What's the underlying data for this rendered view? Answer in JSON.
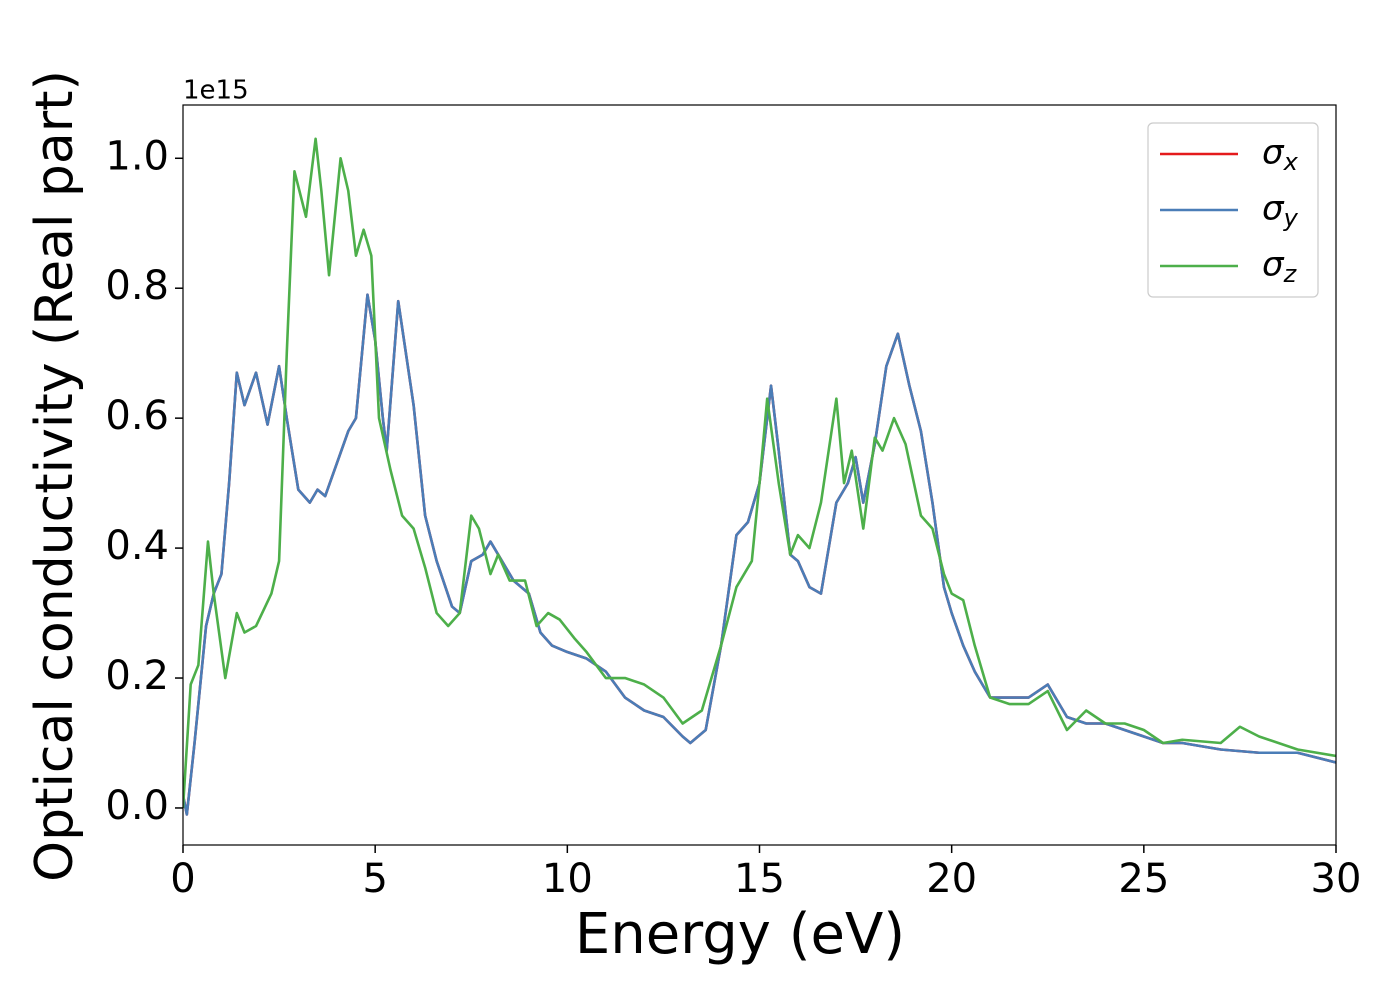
{
  "chart_data": {
    "type": "line",
    "xlabel": "Energy (eV)",
    "ylabel": "Optical conductivity (Real part)",
    "y_offset_label": "1e15",
    "xlim": [
      0,
      30
    ],
    "xticks": [
      0,
      5,
      10,
      15,
      20,
      25,
      30
    ],
    "ylim": [
      -0.057,
      1.082
    ],
    "yticks": [
      {
        "value": 0,
        "label": "0.0"
      },
      {
        "value": 0.2,
        "label": "0.2"
      },
      {
        "value": 0.4,
        "label": "0.4"
      },
      {
        "value": 0.6,
        "label": "0.6"
      },
      {
        "value": 0.8,
        "label": "0.8"
      },
      {
        "value": 1.0,
        "label": "1.0"
      }
    ],
    "legend": "upper right",
    "series": [
      {
        "name": "σx",
        "color": "#e41a1c",
        "x": [
          0,
          0.1,
          0.3,
          0.6,
          0.8,
          1.0,
          1.2,
          1.4,
          1.6,
          1.9,
          2.2,
          2.5,
          2.7,
          3.0,
          3.3,
          3.5,
          3.7,
          4.0,
          4.3,
          4.5,
          4.8,
          5.0,
          5.2,
          5.3,
          5.6,
          5.8,
          6.0,
          6.3,
          6.6,
          7.0,
          7.2,
          7.5,
          7.8,
          8.0,
          8.3,
          8.6,
          9.0,
          9.3,
          9.6,
          10.0,
          10.5,
          11.0,
          11.5,
          12.0,
          12.5,
          13.0,
          13.2,
          13.6,
          14.0,
          14.4,
          14.7,
          15.0,
          15.3,
          15.5,
          15.8,
          16.0,
          16.3,
          16.6,
          17.0,
          17.3,
          17.5,
          17.7,
          18.0,
          18.3,
          18.6,
          18.9,
          19.2,
          19.5,
          19.8,
          20.0,
          20.3,
          20.6,
          21.0,
          21.5,
          22.0,
          22.5,
          23.0,
          23.5,
          24.0,
          24.5,
          25.0,
          25.5,
          26,
          27,
          28,
          29,
          30
        ],
        "values": [
          0.02,
          -0.01,
          0.1,
          0.28,
          0.33,
          0.36,
          0.5,
          0.67,
          0.62,
          0.67,
          0.59,
          0.68,
          0.6,
          0.49,
          0.47,
          0.49,
          0.48,
          0.53,
          0.58,
          0.6,
          0.79,
          0.72,
          0.6,
          0.55,
          0.78,
          0.7,
          0.62,
          0.45,
          0.38,
          0.31,
          0.3,
          0.38,
          0.39,
          0.41,
          0.38,
          0.35,
          0.33,
          0.27,
          0.25,
          0.24,
          0.23,
          0.21,
          0.17,
          0.15,
          0.14,
          0.11,
          0.1,
          0.12,
          0.25,
          0.42,
          0.44,
          0.5,
          0.65,
          0.55,
          0.39,
          0.38,
          0.34,
          0.33,
          0.47,
          0.5,
          0.54,
          0.47,
          0.56,
          0.68,
          0.73,
          0.65,
          0.58,
          0.47,
          0.34,
          0.3,
          0.25,
          0.21,
          0.17,
          0.17,
          0.17,
          0.19,
          0.14,
          0.13,
          0.13,
          0.12,
          0.11,
          0.1,
          0.1,
          0.09,
          0.085,
          0.085,
          0.07
        ]
      },
      {
        "name": "σy",
        "color": "#4a7db7",
        "x": [
          0,
          0.1,
          0.3,
          0.6,
          0.8,
          1.0,
          1.2,
          1.4,
          1.6,
          1.9,
          2.2,
          2.5,
          2.7,
          3.0,
          3.3,
          3.5,
          3.7,
          4.0,
          4.3,
          4.5,
          4.8,
          5.0,
          5.2,
          5.3,
          5.6,
          5.8,
          6.0,
          6.3,
          6.6,
          7.0,
          7.2,
          7.5,
          7.8,
          8.0,
          8.3,
          8.6,
          9.0,
          9.3,
          9.6,
          10.0,
          10.5,
          11.0,
          11.5,
          12.0,
          12.5,
          13.0,
          13.2,
          13.6,
          14.0,
          14.4,
          14.7,
          15.0,
          15.3,
          15.5,
          15.8,
          16.0,
          16.3,
          16.6,
          17.0,
          17.3,
          17.5,
          17.7,
          18.0,
          18.3,
          18.6,
          18.9,
          19.2,
          19.5,
          19.8,
          20.0,
          20.3,
          20.6,
          21.0,
          21.5,
          22.0,
          22.5,
          23.0,
          23.5,
          24.0,
          24.5,
          25.0,
          25.5,
          26,
          27,
          28,
          29,
          30
        ],
        "values": [
          0.02,
          -0.01,
          0.1,
          0.28,
          0.33,
          0.36,
          0.5,
          0.67,
          0.62,
          0.67,
          0.59,
          0.68,
          0.6,
          0.49,
          0.47,
          0.49,
          0.48,
          0.53,
          0.58,
          0.6,
          0.79,
          0.72,
          0.6,
          0.55,
          0.78,
          0.7,
          0.62,
          0.45,
          0.38,
          0.31,
          0.3,
          0.38,
          0.39,
          0.41,
          0.38,
          0.35,
          0.33,
          0.27,
          0.25,
          0.24,
          0.23,
          0.21,
          0.17,
          0.15,
          0.14,
          0.11,
          0.1,
          0.12,
          0.25,
          0.42,
          0.44,
          0.5,
          0.65,
          0.55,
          0.39,
          0.38,
          0.34,
          0.33,
          0.47,
          0.5,
          0.54,
          0.47,
          0.56,
          0.68,
          0.73,
          0.65,
          0.58,
          0.47,
          0.34,
          0.3,
          0.25,
          0.21,
          0.17,
          0.17,
          0.17,
          0.19,
          0.14,
          0.13,
          0.13,
          0.12,
          0.11,
          0.1,
          0.1,
          0.09,
          0.085,
          0.085,
          0.07
        ]
      },
      {
        "name": "σz",
        "color": "#4daf4a",
        "x": [
          0,
          0.2,
          0.4,
          0.65,
          0.8,
          1.1,
          1.4,
          1.6,
          1.9,
          2.3,
          2.5,
          2.7,
          2.9,
          3.2,
          3.45,
          3.6,
          3.8,
          4.1,
          4.3,
          4.5,
          4.7,
          4.9,
          5.1,
          5.4,
          5.7,
          6.0,
          6.3,
          6.6,
          6.9,
          7.2,
          7.5,
          7.7,
          8.0,
          8.2,
          8.5,
          8.9,
          9.2,
          9.5,
          9.8,
          10.2,
          10.5,
          11.0,
          11.5,
          12.0,
          12.5,
          13.0,
          13.5,
          14.0,
          14.4,
          14.8,
          15.0,
          15.2,
          15.5,
          15.8,
          16.0,
          16.3,
          16.6,
          17.0,
          17.2,
          17.4,
          17.7,
          18.0,
          18.2,
          18.5,
          18.8,
          19.2,
          19.5,
          19.8,
          20.0,
          20.3,
          20.6,
          21.0,
          21.5,
          22.0,
          22.5,
          23.0,
          23.5,
          24.0,
          24.5,
          25.0,
          25.5,
          26,
          27,
          27.5,
          28,
          29,
          30
        ],
        "values": [
          0.0,
          0.19,
          0.22,
          0.41,
          0.33,
          0.2,
          0.3,
          0.27,
          0.28,
          0.33,
          0.38,
          0.7,
          0.98,
          0.91,
          1.03,
          0.95,
          0.82,
          1.0,
          0.95,
          0.85,
          0.89,
          0.85,
          0.6,
          0.52,
          0.45,
          0.43,
          0.37,
          0.3,
          0.28,
          0.3,
          0.45,
          0.43,
          0.36,
          0.39,
          0.35,
          0.35,
          0.28,
          0.3,
          0.29,
          0.26,
          0.24,
          0.2,
          0.2,
          0.19,
          0.17,
          0.13,
          0.15,
          0.25,
          0.34,
          0.38,
          0.5,
          0.63,
          0.5,
          0.39,
          0.42,
          0.4,
          0.47,
          0.63,
          0.5,
          0.55,
          0.43,
          0.57,
          0.55,
          0.6,
          0.56,
          0.45,
          0.43,
          0.36,
          0.33,
          0.32,
          0.25,
          0.17,
          0.16,
          0.16,
          0.18,
          0.12,
          0.15,
          0.13,
          0.13,
          0.12,
          0.1,
          0.105,
          0.1,
          0.125,
          0.11,
          0.09,
          0.08
        ]
      }
    ]
  }
}
